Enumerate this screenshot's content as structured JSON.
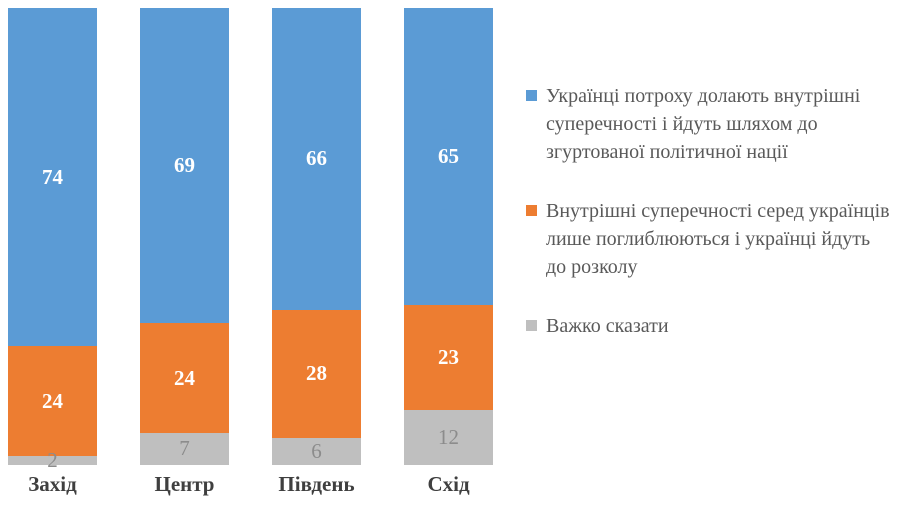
{
  "chart_data": {
    "type": "bar",
    "subtype": "stacked-column-100",
    "title": "",
    "xlabel": "",
    "ylabel": "",
    "ylim": [
      0,
      100
    ],
    "grid": false,
    "legend_position": "right",
    "categories": [
      "Захід",
      "Центр",
      "Південь",
      "Схід"
    ],
    "series": [
      {
        "name": "Українці потроху долають внутрішні суперечності і йдуть шляхом до згуртованої політичної нації",
        "color": "#5B9BD5",
        "label_color": "#FFFFFF",
        "label_bold": true,
        "values": [
          74,
          69,
          66,
          65
        ]
      },
      {
        "name": "Внутрішні суперечності серед українців лише поглиблюються і українці йдуть до розколу",
        "color": "#ED7D31",
        "label_color": "#FFFFFF",
        "label_bold": true,
        "values": [
          24,
          24,
          28,
          23
        ]
      },
      {
        "name": "Важко сказати",
        "color": "#BFBFBF",
        "label_color": "#8C8C8C",
        "label_bold": false,
        "values": [
          2,
          7,
          6,
          12
        ]
      }
    ],
    "colors": {
      "background": "#FFFFFF",
      "category_label": "#3F3F3F",
      "legend_text": "#595959"
    }
  }
}
